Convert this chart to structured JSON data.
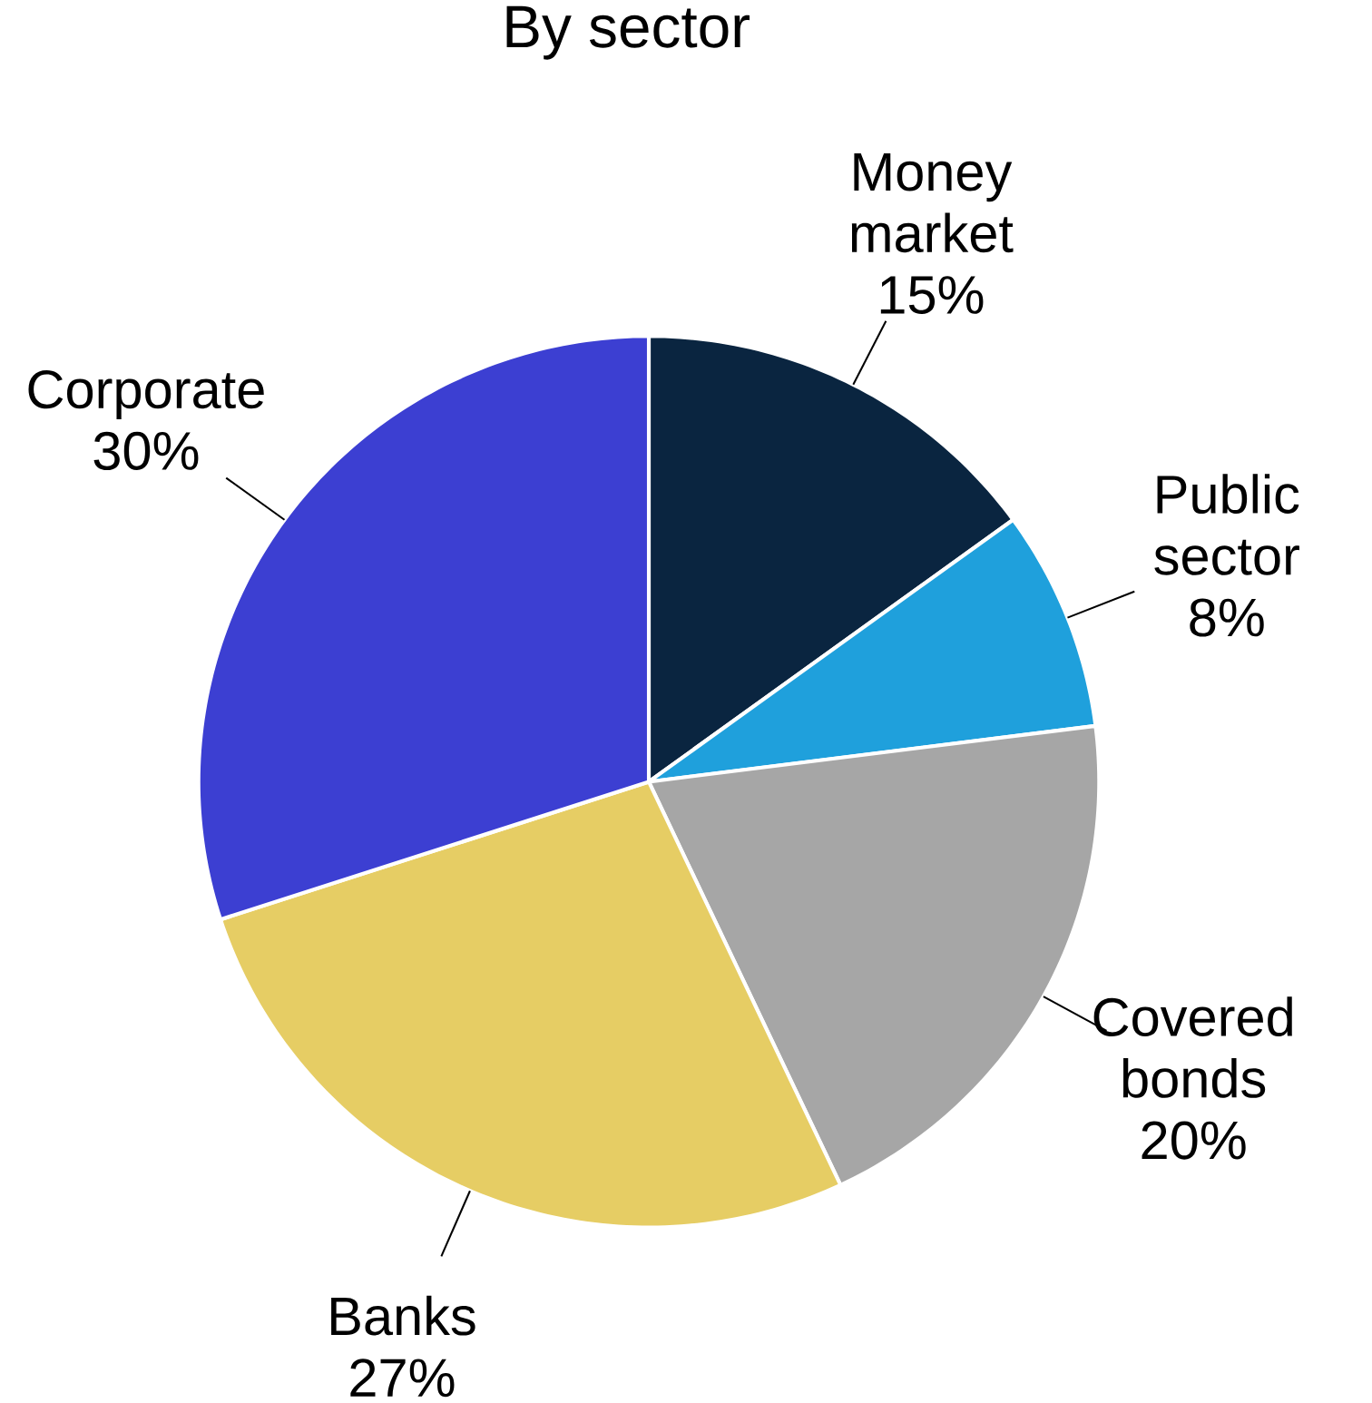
{
  "chart_data": {
    "type": "pie",
    "title": "By sector",
    "categories": [
      "Money market",
      "Public sector",
      "Covered bonds",
      "Banks",
      "Corporate"
    ],
    "values": [
      15,
      8,
      20,
      27,
      30
    ],
    "value_labels": [
      "15%",
      "8%",
      "20%",
      "27%",
      "30%"
    ],
    "colors": [
      "#0a2540",
      "#1fa0dc",
      "#a6a6a6",
      "#e6cd64",
      "#3c3fd2"
    ]
  }
}
